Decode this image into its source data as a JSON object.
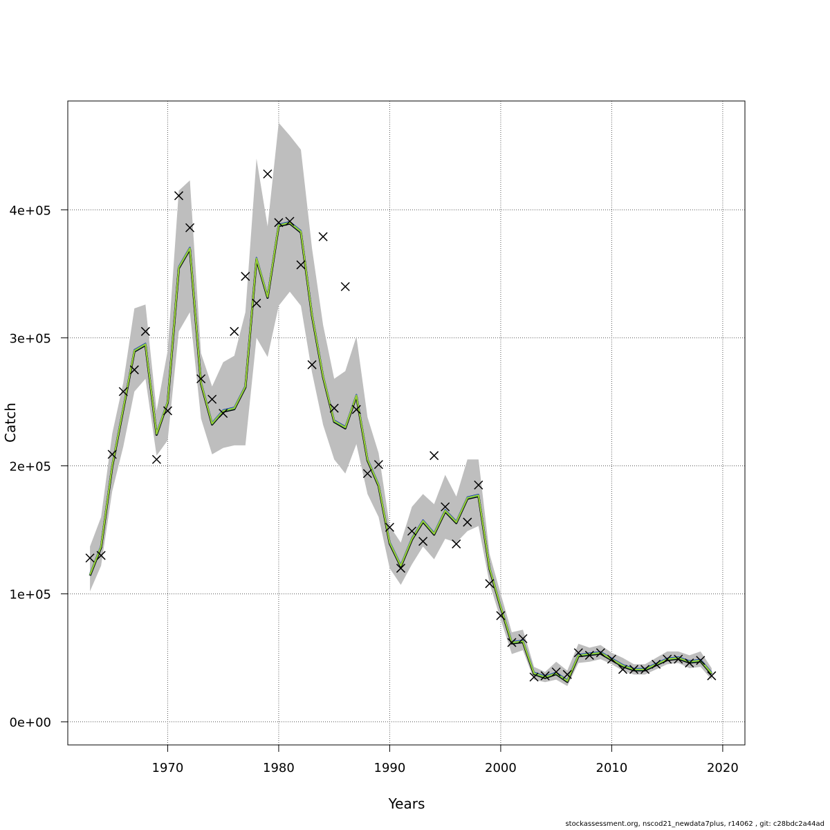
{
  "chart_data": {
    "type": "line",
    "title": "",
    "xlabel": "Years",
    "ylabel": "Catch",
    "xlim": [
      1961,
      2022
    ],
    "ylim": [
      -18000,
      485000
    ],
    "x_ticks": [
      1970,
      1980,
      1990,
      2000,
      2010,
      2020
    ],
    "x_tick_labels": [
      "1970",
      "1980",
      "1990",
      "2000",
      "2010",
      "2020"
    ],
    "y_ticks": [
      0,
      100000,
      200000,
      300000,
      400000
    ],
    "y_tick_labels": [
      "0e+00",
      "1e+05",
      "2e+05",
      "3e+05",
      "4e+05"
    ],
    "grid": true,
    "colors": {
      "band": "#bebebe",
      "grid": "#555555",
      "line_main": "#9acd32",
      "line_alt1": "#1e90ff",
      "line_alt2": "#00a0a0",
      "line_alt3": "#000080",
      "line_alt4": "#000000"
    },
    "years": [
      1963,
      1964,
      1965,
      1966,
      1967,
      1968,
      1969,
      1970,
      1971,
      1972,
      1973,
      1974,
      1975,
      1976,
      1977,
      1978,
      1979,
      1980,
      1981,
      1982,
      1983,
      1984,
      1985,
      1986,
      1987,
      1988,
      1989,
      1990,
      1991,
      1992,
      1993,
      1994,
      1995,
      1996,
      1997,
      1998,
      1999,
      2000,
      2001,
      2002,
      2003,
      2004,
      2005,
      2006,
      2007,
      2008,
      2009,
      2010,
      2011,
      2012,
      2013,
      2014,
      2015,
      2016,
      2017,
      2018,
      2019
    ],
    "series": [
      {
        "role": "estimate",
        "values": [
          115000,
          137000,
          200000,
          245000,
          290000,
          295000,
          225000,
          250000,
          355000,
          370000,
          265000,
          233000,
          243000,
          245000,
          262000,
          362000,
          332000,
          388000,
          390000,
          383000,
          318000,
          270000,
          235000,
          230000,
          255000,
          205000,
          185000,
          140000,
          122000,
          143000,
          157000,
          147000,
          165000,
          156000,
          175000,
          177000,
          120000,
          90000,
          62000,
          63000,
          38000,
          35000,
          38000,
          32000,
          52000,
          53000,
          54000,
          49000,
          44000,
          41000,
          41000,
          45000,
          49000,
          50000,
          47000,
          48000,
          38000
        ]
      }
    ],
    "ci_upper": [
      137000,
      160000,
      225000,
      265000,
      323000,
      326000,
      243000,
      290000,
      415000,
      423000,
      288000,
      262000,
      281000,
      286000,
      320000,
      440000,
      387000,
      468000,
      458000,
      447000,
      370000,
      310000,
      268000,
      274000,
      301000,
      238000,
      210000,
      153000,
      140000,
      168000,
      178000,
      170000,
      193000,
      176000,
      205000,
      205000,
      131000,
      100000,
      70000,
      72000,
      43000,
      39000,
      47000,
      40000,
      61000,
      58000,
      60000,
      54000,
      50000,
      45000,
      45000,
      50000,
      55000,
      55000,
      52000,
      55000,
      42000
    ],
    "ci_lower": [
      102000,
      122000,
      180000,
      215000,
      258000,
      268000,
      208000,
      220000,
      305000,
      320000,
      237000,
      209000,
      214000,
      216000,
      216000,
      300000,
      285000,
      325000,
      336000,
      325000,
      273000,
      232000,
      205000,
      194000,
      217000,
      178000,
      160000,
      120000,
      107000,
      123000,
      137000,
      127000,
      143000,
      140000,
      149000,
      153000,
      108000,
      80000,
      53000,
      56000,
      33000,
      31000,
      33000,
      28000,
      46000,
      47000,
      49000,
      45000,
      40000,
      37000,
      37000,
      41000,
      45000,
      46000,
      42000,
      43000,
      33000
    ],
    "observed": {
      "marker": "x",
      "values": [
        128000,
        130000,
        209000,
        258000,
        275000,
        305000,
        205000,
        243000,
        411000,
        386000,
        268000,
        252000,
        241000,
        305000,
        348000,
        327000,
        428000,
        390000,
        391000,
        357000,
        279000,
        379000,
        245000,
        340000,
        244000,
        194000,
        201000,
        152000,
        120000,
        149000,
        141000,
        208000,
        168000,
        139000,
        156000,
        185000,
        108000,
        83000,
        62000,
        65000,
        35000,
        36000,
        39000,
        37000,
        54000,
        52000,
        54000,
        49000,
        41000,
        41000,
        41000,
        45000,
        49000,
        49000,
        46000,
        48000,
        36000
      ]
    }
  },
  "footer": {
    "text": "stockassessment.org, nscod21_newdata7plus, r14062 , git: c28bdc2a44ad"
  }
}
